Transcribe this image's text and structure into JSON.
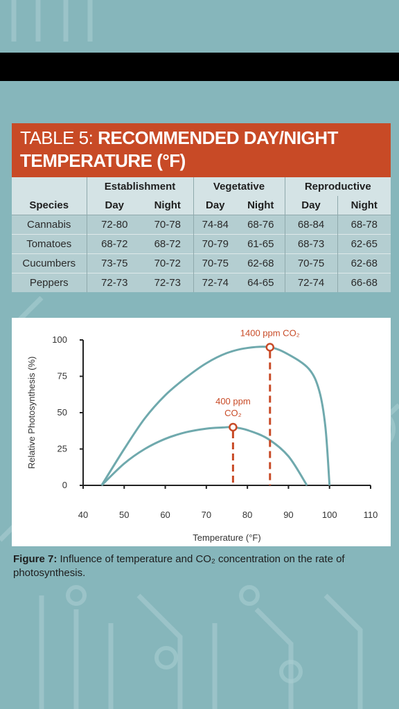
{
  "table": {
    "title_label": "TABLE 5:",
    "title_text": "RECOMMENDED DAY/NIGHT TEMPERATURE (°F)",
    "species_header": "Species",
    "groups": [
      "Establishment",
      "Vegetative",
      "Reproductive"
    ],
    "sub_headers": [
      "Day",
      "Night",
      "Day",
      "Night",
      "Day",
      "Night"
    ],
    "rows": [
      {
        "species": "Cannabis",
        "values": [
          "72-80",
          "70-78",
          "74-84",
          "68-76",
          "68-84",
          "68-78"
        ]
      },
      {
        "species": "Tomatoes",
        "values": [
          "68-72",
          "68-72",
          "70-79",
          "61-65",
          "68-73",
          "62-65"
        ]
      },
      {
        "species": "Cucumbers",
        "values": [
          "73-75",
          "70-72",
          "70-75",
          "62-68",
          "70-75",
          "62-68"
        ]
      },
      {
        "species": "Peppers",
        "values": [
          "72-73",
          "72-73",
          "72-74",
          "64-65",
          "72-74",
          "66-68"
        ]
      }
    ]
  },
  "chart_data": {
    "type": "line",
    "title": "",
    "xlabel": "Temperature (°F)",
    "ylabel": "Relative Photosynthesis (%)",
    "xlim": [
      40,
      110
    ],
    "ylim": [
      0,
      100
    ],
    "x_ticks": [
      40,
      50,
      60,
      70,
      80,
      90,
      100,
      110
    ],
    "y_ticks": [
      0,
      25,
      50,
      75,
      100
    ],
    "grid": false,
    "colors": {
      "curve": "#6fa9ad",
      "annotation": "#c84a26",
      "axis": "#222222"
    },
    "series": [
      {
        "label_lines": [
          "400 ppm",
          "CO₂"
        ],
        "points": [
          [
            44.5,
            0
          ],
          [
            50,
            15
          ],
          [
            55,
            25
          ],
          [
            60,
            32
          ],
          [
            65,
            36.5
          ],
          [
            70,
            39
          ],
          [
            74,
            39.8
          ],
          [
            76.5,
            40
          ],
          [
            80,
            38
          ],
          [
            85,
            32
          ],
          [
            90,
            20
          ],
          [
            94.5,
            0
          ]
        ],
        "peak": [
          76.5,
          40
        ]
      },
      {
        "label_lines": [
          "1400 ppm CO₂"
        ],
        "points": [
          [
            44.5,
            0
          ],
          [
            50,
            25
          ],
          [
            55,
            46
          ],
          [
            60,
            62
          ],
          [
            65,
            74
          ],
          [
            70,
            84
          ],
          [
            75,
            91
          ],
          [
            80,
            94.5
          ],
          [
            85.5,
            95
          ],
          [
            90,
            90
          ],
          [
            95,
            80
          ],
          [
            97.5,
            65
          ],
          [
            99,
            40
          ],
          [
            100,
            0
          ]
        ],
        "peak": [
          85.5,
          95
        ]
      }
    ]
  },
  "caption": {
    "label": "Figure 7:",
    "text": "Influence of temperature and CO₂ concentration on the rate of photosynthesis."
  }
}
